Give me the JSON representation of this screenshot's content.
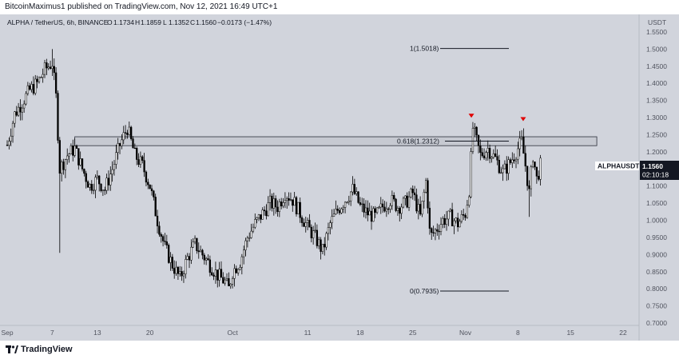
{
  "header": {
    "published": "BitcoinMaximus1 published on TradingView.com, Nov 12, 2021 16:49 UTC+1"
  },
  "footer": {
    "brand": "TradingView"
  },
  "legend": {
    "pair": "ALPHA / TetherUS, 6h, BINANCE",
    "open_label": "O",
    "open": "1.1734",
    "high_label": "H",
    "high": "1.1859",
    "low_label": "L",
    "low": "1.1352",
    "close_label": "C",
    "close": "1.1560",
    "change": "−0.0173 (−1.47%)"
  },
  "price_tag": {
    "symbol": "ALPHAUSDT",
    "price": "1.1560",
    "countdown": "02:10:18"
  },
  "colors": {
    "background": "#d1d4dc",
    "candles": "#000000",
    "marker": "#e00000",
    "zone": "#c6c9d1"
  },
  "chart_data": {
    "type": "candlestick",
    "currency": "USDT",
    "y_ticks": [
      "1.5500",
      "1.5000",
      "1.4500",
      "1.4000",
      "1.3500",
      "1.3000",
      "1.2500",
      "1.2000",
      "1.1500",
      "1.1000",
      "1.0500",
      "1.0000",
      "0.9500",
      "0.9000",
      "0.8500",
      "0.8000",
      "0.7500",
      "0.7000"
    ],
    "ylim": [
      0.7,
      1.57
    ],
    "x_ticks": [
      {
        "label": "Sep",
        "day": 0
      },
      {
        "label": "7",
        "day": 6
      },
      {
        "label": "13",
        "day": 12
      },
      {
        "label": "20",
        "day": 19
      },
      {
        "label": "Oct",
        "day": 30
      },
      {
        "label": "11",
        "day": 40
      },
      {
        "label": "18",
        "day": 47
      },
      {
        "label": "25",
        "day": 54
      },
      {
        "label": "Nov",
        "day": 61
      },
      {
        "label": "8",
        "day": 68
      },
      {
        "label": "15",
        "day": 75
      },
      {
        "label": "22",
        "day": 82
      }
    ],
    "xlim_days": [
      0,
      84.5
    ],
    "fib_levels": [
      {
        "label": "1(1.5018)",
        "value": 1.5018
      },
      {
        "label": "0.618(1.2312)",
        "value": 1.2312
      },
      {
        "label": "0(0.7935)",
        "value": 0.7935
      }
    ],
    "resistance_zone": [
      1.218,
      1.244
    ],
    "resistance_zone_days": [
      9,
      78.5
    ],
    "rejection_markers": [
      {
        "day": 61.8,
        "value": 1.282
      },
      {
        "day": 68.7,
        "value": 1.272
      }
    ],
    "price_path": [
      [
        0,
        1.22
      ],
      [
        1,
        1.31
      ],
      [
        3,
        1.38
      ],
      [
        4,
        1.4
      ],
      [
        5,
        1.44
      ],
      [
        6,
        1.46
      ],
      [
        6.5,
        1.36
      ],
      [
        7,
        1.15
      ],
      [
        8,
        1.19
      ],
      [
        9,
        1.21
      ],
      [
        10,
        1.15
      ],
      [
        11,
        1.1
      ],
      [
        12,
        1.12
      ],
      [
        13,
        1.09
      ],
      [
        14,
        1.15
      ],
      [
        15,
        1.22
      ],
      [
        16,
        1.27
      ],
      [
        17,
        1.19
      ],
      [
        18,
        1.16
      ],
      [
        19,
        1.1
      ],
      [
        20,
        1.0
      ],
      [
        21,
        0.92
      ],
      [
        22,
        0.87
      ],
      [
        23,
        0.83
      ],
      [
        24,
        0.89
      ],
      [
        25,
        0.93
      ],
      [
        26,
        0.9
      ],
      [
        27,
        0.87
      ],
      [
        28,
        0.84
      ],
      [
        29,
        0.82
      ],
      [
        29.5,
        0.8
      ],
      [
        30,
        0.85
      ],
      [
        31,
        0.88
      ],
      [
        32,
        0.95
      ],
      [
        33,
        0.99
      ],
      [
        34,
        1.02
      ],
      [
        35,
        1.05
      ],
      [
        36,
        1.04
      ],
      [
        37,
        1.08
      ],
      [
        38,
        1.06
      ],
      [
        39,
        1.02
      ],
      [
        40,
        0.98
      ],
      [
        41,
        0.95
      ],
      [
        42,
        0.91
      ],
      [
        43,
        0.99
      ],
      [
        44,
        1.03
      ],
      [
        45,
        1.06
      ],
      [
        46,
        1.09
      ],
      [
        47,
        1.04
      ],
      [
        48,
        1.02
      ],
      [
        49,
        1.01
      ],
      [
        50,
        1.04
      ],
      [
        51,
        1.06
      ],
      [
        52,
        1.04
      ],
      [
        53,
        1.05
      ],
      [
        54,
        1.08
      ],
      [
        55,
        1.01
      ],
      [
        55.8,
        1.12
      ],
      [
        56.3,
        0.95
      ],
      [
        57,
        0.97
      ],
      [
        58,
        1.0
      ],
      [
        59,
        1.01
      ],
      [
        60,
        0.99
      ],
      [
        61,
        1.02
      ],
      [
        61.5,
        1.09
      ],
      [
        62,
        1.27
      ],
      [
        63,
        1.19
      ],
      [
        64,
        1.21
      ],
      [
        65,
        1.18
      ],
      [
        66,
        1.14
      ],
      [
        67,
        1.17
      ],
      [
        68,
        1.21
      ],
      [
        68.5,
        1.23
      ],
      [
        69,
        1.16
      ],
      [
        69.5,
        1.08
      ],
      [
        70,
        1.19
      ],
      [
        70.5,
        1.12
      ],
      [
        71,
        1.16
      ]
    ]
  }
}
